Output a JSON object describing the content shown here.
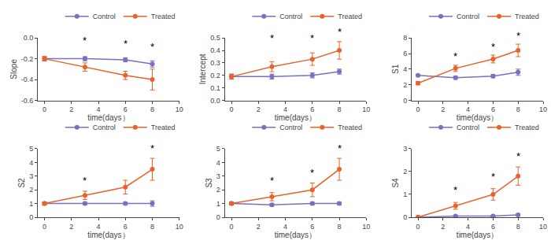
{
  "chart_data": [
    {
      "type": "line",
      "x": [
        0,
        3,
        6,
        8
      ],
      "xlim": [
        -0.5,
        10
      ],
      "xticks": [
        0,
        2,
        4,
        6,
        8,
        10
      ],
      "xlabel": "time(days）",
      "ylabel": "Slope",
      "ylim": [
        -0.6,
        0.0
      ],
      "yticks": [
        -0.6,
        -0.4,
        -0.2,
        {
          "value": 0.0,
          "label": "0.0"
        }
      ],
      "grid": false,
      "legend": "upper right",
      "series": [
        {
          "name": "Control",
          "color": "#7B6FBF",
          "marker": "circle",
          "line_style": "solid",
          "values": [
            -0.2,
            -0.2,
            -0.21,
            -0.25
          ],
          "errors": [
            0.02,
            0.02,
            0.02,
            0.03
          ]
        },
        {
          "name": "Treated",
          "color": "#E8622A",
          "marker": "circle",
          "line_style": "solid",
          "values": [
            -0.2,
            -0.28,
            -0.36,
            -0.4
          ],
          "errors": [
            0.02,
            0.04,
            0.04,
            0.1
          ]
        }
      ],
      "annotations": [
        {
          "text": "*",
          "x": 3,
          "y": -0.1
        },
        {
          "text": "*",
          "x": 6,
          "y": -0.13
        },
        {
          "text": "*",
          "x": 8,
          "y": -0.155
        }
      ]
    },
    {
      "type": "line",
      "x": [
        0,
        3,
        6,
        8
      ],
      "xlim": [
        -0.5,
        10
      ],
      "xticks": [
        0,
        2,
        4,
        6,
        8,
        10
      ],
      "xlabel": "time(days）",
      "ylabel": "Intercept",
      "ylim": [
        0.0,
        0.5
      ],
      "yticks": [
        {
          "value": 0.0,
          "label": "0.0"
        },
        0.1,
        0.2,
        0.3,
        0.4,
        0.5
      ],
      "grid": false,
      "legend": "upper right",
      "series": [
        {
          "name": "Control",
          "color": "#7B6FBF",
          "marker": "circle",
          "line_style": "solid",
          "values": [
            0.19,
            0.19,
            0.2,
            0.23
          ],
          "errors": [
            0.02,
            0.02,
            0.02,
            0.02
          ]
        },
        {
          "name": "Treated",
          "color": "#E8622A",
          "marker": "circle",
          "line_style": "solid",
          "values": [
            0.19,
            0.27,
            0.33,
            0.4
          ],
          "errors": [
            0.02,
            0.04,
            0.05,
            0.07
          ]
        }
      ],
      "annotations": [
        {
          "text": "*",
          "x": 3,
          "y": 0.435
        },
        {
          "text": "*",
          "x": 6,
          "y": 0.435
        },
        {
          "text": "*",
          "x": 8,
          "y": 0.49
        }
      ]
    },
    {
      "type": "line",
      "x": [
        0,
        3,
        6,
        8
      ],
      "xlim": [
        -0.5,
        10
      ],
      "xticks": [
        0,
        2,
        4,
        6,
        8,
        10
      ],
      "xlabel": "time(days）",
      "ylabel": "S1",
      "ylim": [
        0,
        8
      ],
      "yticks": [
        0,
        2,
        4,
        6,
        8
      ],
      "grid": false,
      "legend": "upper right",
      "series": [
        {
          "name": "Control",
          "color": "#7B6FBF",
          "marker": "circle",
          "line_style": "solid",
          "values": [
            3.2,
            2.9,
            3.1,
            3.6
          ],
          "errors": [
            0.1,
            0.2,
            0.2,
            0.4
          ]
        },
        {
          "name": "Treated",
          "color": "#E8622A",
          "marker": "circle",
          "line_style": "solid",
          "values": [
            2.2,
            4.1,
            5.3,
            6.4
          ],
          "errors": [
            0.2,
            0.4,
            0.5,
            0.8
          ]
        }
      ],
      "annotations": [
        {
          "text": "*",
          "x": 3,
          "y": 4.7
        },
        {
          "text": "*",
          "x": 6,
          "y": 5.95
        },
        {
          "text": "*",
          "x": 8,
          "y": 7.35
        }
      ]
    },
    {
      "type": "line",
      "x": [
        0,
        3,
        6,
        8
      ],
      "xlim": [
        -0.5,
        10
      ],
      "xticks": [
        0,
        2,
        4,
        6,
        8,
        10
      ],
      "xlabel": "time(days）",
      "ylabel": "S2",
      "ylim": [
        0,
        5
      ],
      "yticks": [
        0,
        1,
        2,
        3,
        4,
        5
      ],
      "grid": false,
      "legend": "upper right",
      "series": [
        {
          "name": "Control",
          "color": "#7B6FBF",
          "marker": "circle",
          "line_style": "solid",
          "values": [
            1.0,
            1.0,
            1.0,
            1.0
          ],
          "errors": [
            0.1,
            0.1,
            0.1,
            0.2
          ]
        },
        {
          "name": "Treated",
          "color": "#E8622A",
          "marker": "circle",
          "line_style": "solid",
          "values": [
            1.0,
            1.6,
            2.2,
            3.5
          ],
          "errors": [
            0.1,
            0.3,
            0.5,
            0.8
          ]
        }
      ],
      "annotations": [
        {
          "text": "*",
          "x": 3,
          "y": 2.1
        },
        {
          "text": "*",
          "x": 8,
          "y": 4.5
        }
      ]
    },
    {
      "type": "line",
      "x": [
        0,
        3,
        6,
        8
      ],
      "xlim": [
        -0.5,
        10
      ],
      "xticks": [
        0,
        2,
        4,
        6,
        8,
        10
      ],
      "xlabel": "time(days）",
      "ylabel": "S3",
      "ylim": [
        0,
        5
      ],
      "yticks": [
        0,
        1,
        2,
        3,
        4,
        5
      ],
      "grid": false,
      "legend": "upper right",
      "series": [
        {
          "name": "Control",
          "color": "#7B6FBF",
          "marker": "circle",
          "line_style": "solid",
          "values": [
            1.0,
            0.9,
            1.0,
            1.0
          ],
          "errors": [
            0.1,
            0.1,
            0.1,
            0.1
          ]
        },
        {
          "name": "Treated",
          "color": "#E8622A",
          "marker": "circle",
          "line_style": "solid",
          "values": [
            1.0,
            1.5,
            2.0,
            3.5
          ],
          "errors": [
            0.1,
            0.3,
            0.5,
            0.8
          ]
        }
      ],
      "annotations": [
        {
          "text": "*",
          "x": 3,
          "y": 2.1
        },
        {
          "text": "*",
          "x": 6,
          "y": 2.7
        },
        {
          "text": "*",
          "x": 8,
          "y": 4.5
        }
      ]
    },
    {
      "type": "line",
      "x": [
        0,
        3,
        6,
        8
      ],
      "xlim": [
        -0.5,
        10
      ],
      "xticks": [
        0,
        2,
        4,
        6,
        8,
        10
      ],
      "xlabel": "time(days）",
      "ylabel": "S4",
      "ylim": [
        0,
        3
      ],
      "yticks": [
        0,
        1,
        2,
        3
      ],
      "grid": false,
      "legend": "upper right",
      "series": [
        {
          "name": "Control",
          "color": "#7B6FBF",
          "marker": "circle",
          "line_style": "solid",
          "values": [
            0.0,
            0.05,
            0.05,
            0.1
          ],
          "errors": [
            0.02,
            0.03,
            0.03,
            0.05
          ]
        },
        {
          "name": "Treated",
          "color": "#E8622A",
          "marker": "circle",
          "line_style": "solid",
          "values": [
            0.0,
            0.5,
            1.0,
            1.8
          ],
          "errors": [
            0.02,
            0.15,
            0.25,
            0.4
          ]
        }
      ],
      "annotations": [
        {
          "text": "*",
          "x": 3,
          "y": 0.85
        },
        {
          "text": "*",
          "x": 6,
          "y": 1.45
        },
        {
          "text": "*",
          "x": 8,
          "y": 2.35
        }
      ]
    }
  ]
}
